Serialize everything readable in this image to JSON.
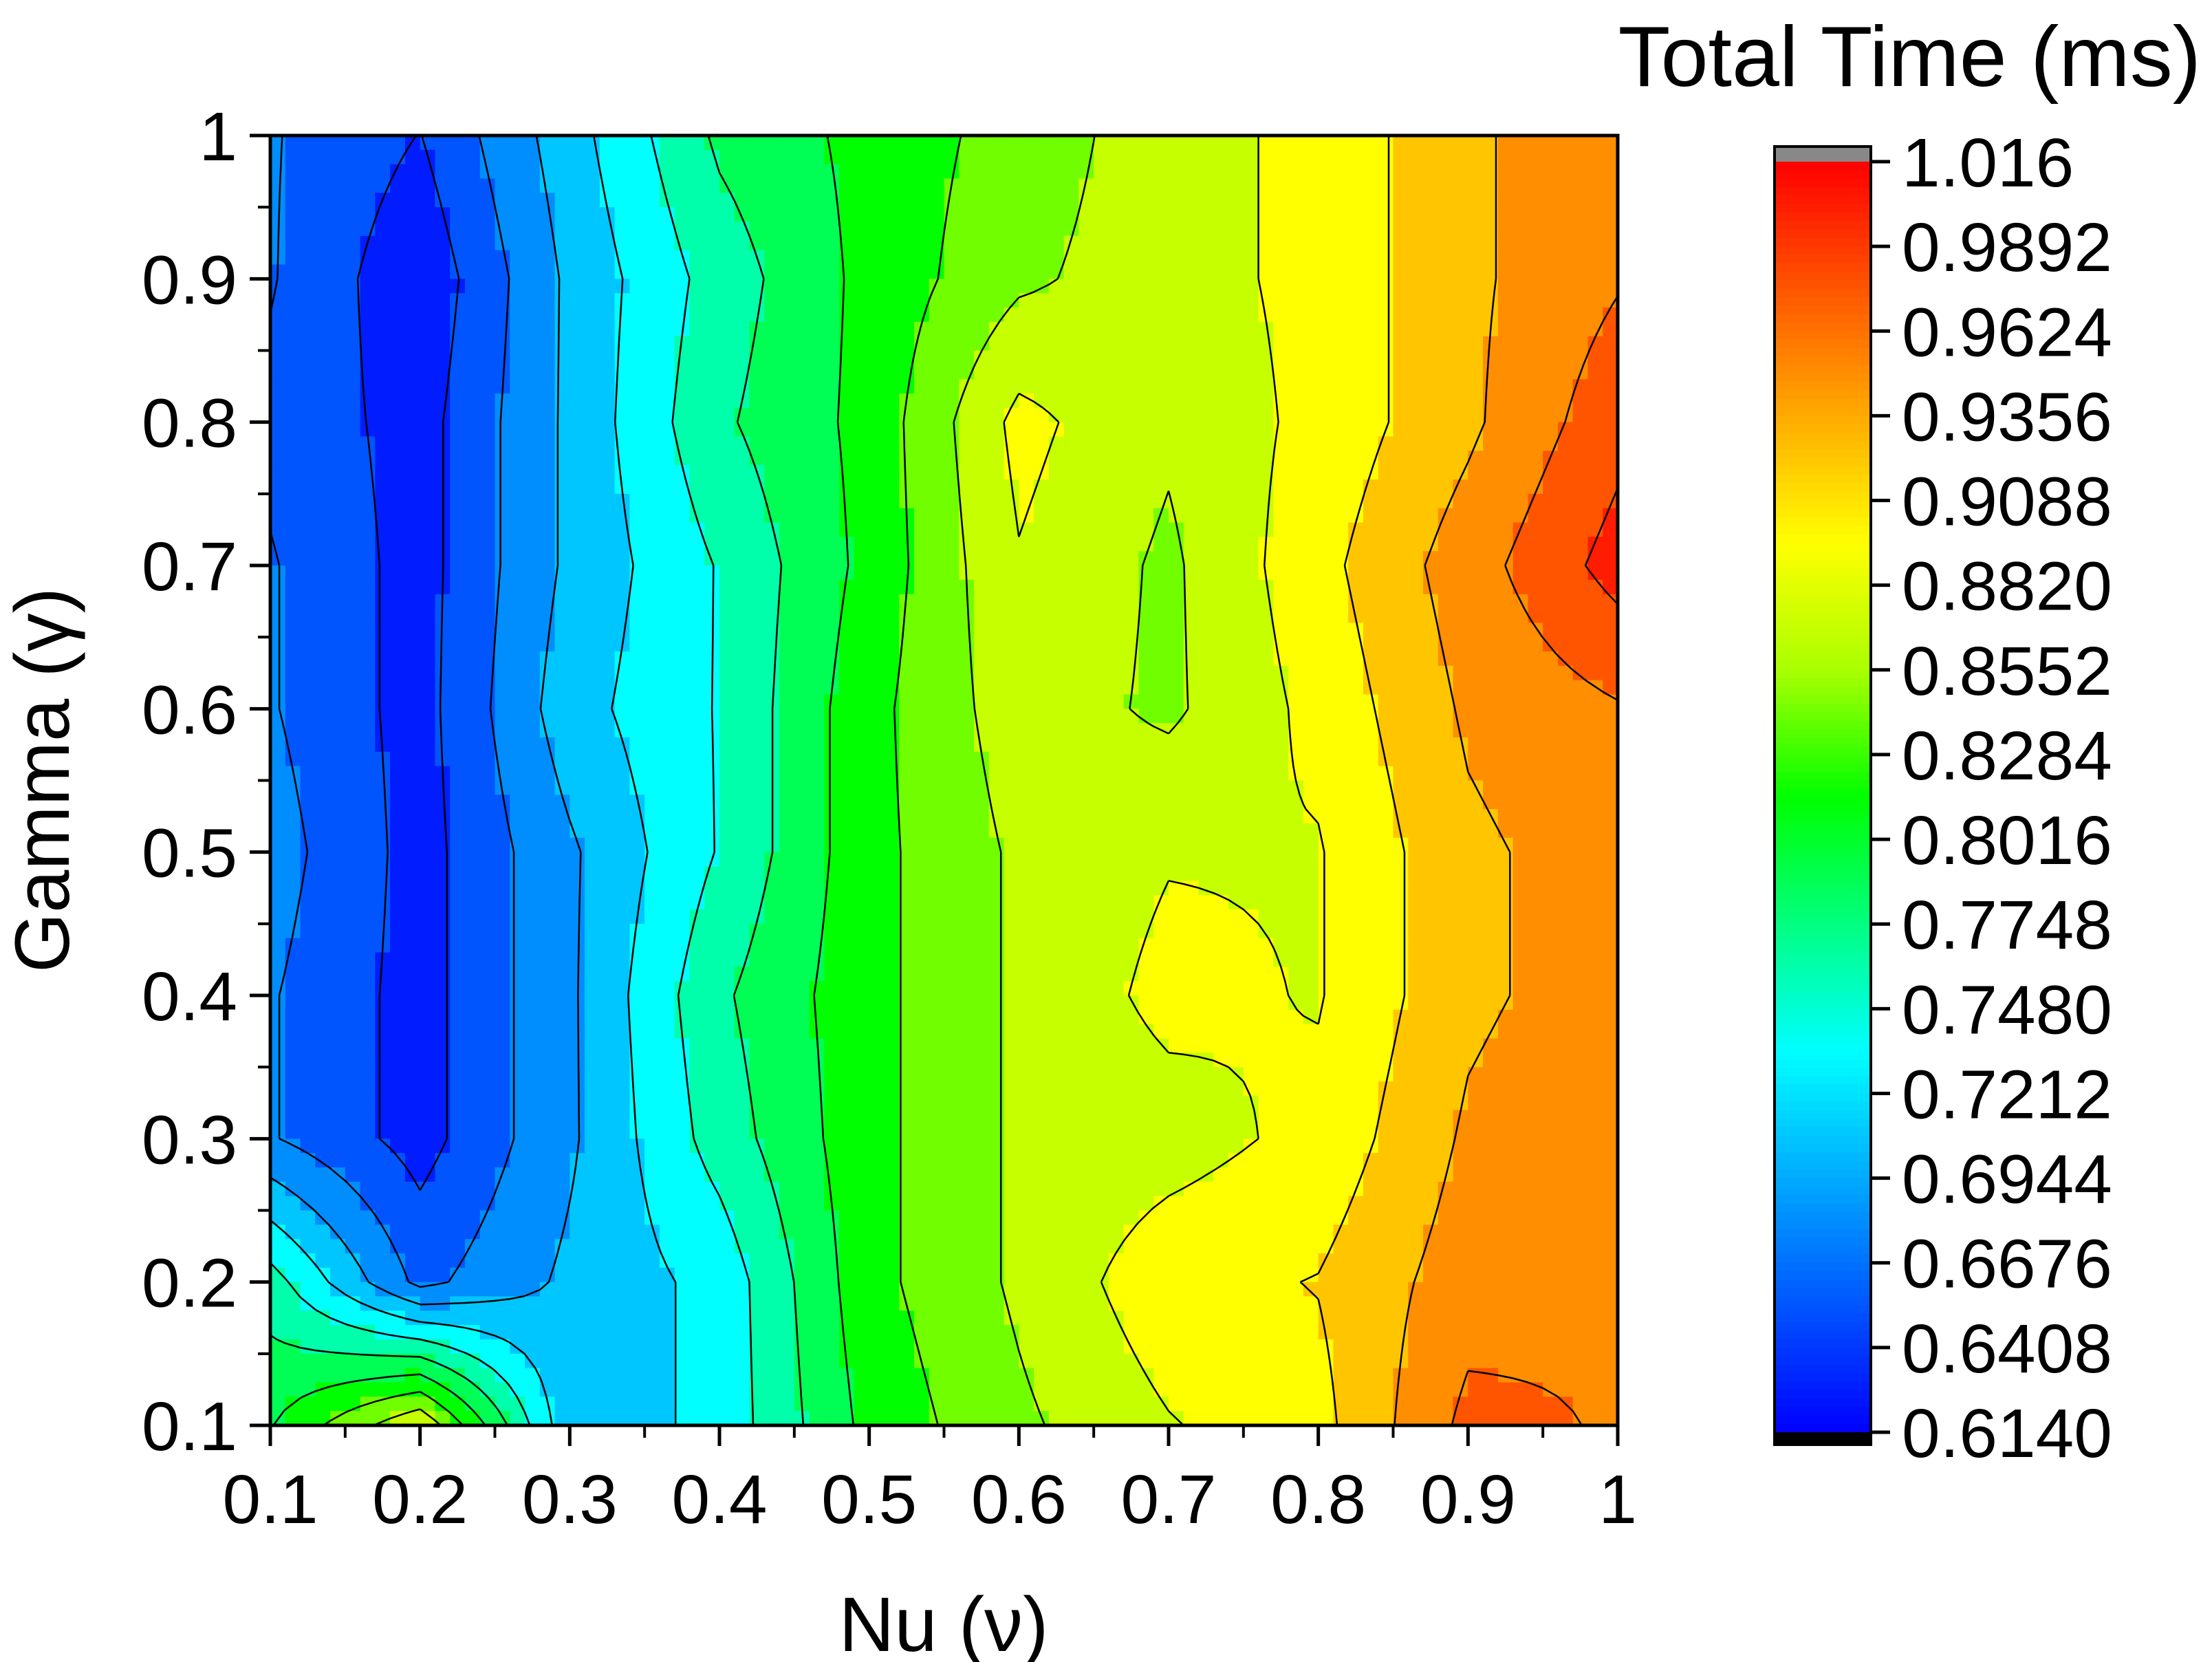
{
  "chart_data": {
    "type": "heatmap",
    "subtype": "filled-contour",
    "title": "",
    "xlabel": "Nu (ν)",
    "ylabel": "Gamma (γ)",
    "colorbar_title": "Total Time (ms)",
    "x": [
      0.1,
      0.2,
      0.3,
      0.4,
      0.5,
      0.6,
      0.7,
      0.8,
      0.9,
      1.0
    ],
    "y": [
      0.1,
      0.2,
      0.3,
      0.4,
      0.5,
      0.6,
      0.7,
      0.8,
      0.9,
      1.0
    ],
    "xlim": [
      0.1,
      1.0
    ],
    "ylim": [
      0.1,
      1.0
    ],
    "x_tick_labels": [
      "0.1",
      "0.2",
      "0.3",
      "0.4",
      "0.5",
      "0.6",
      "0.7",
      "0.8",
      "0.9",
      "1"
    ],
    "y_tick_labels": [
      "0.1",
      "0.2",
      "0.3",
      "0.4",
      "0.5",
      "0.6",
      "0.7",
      "0.8",
      "0.9",
      "1"
    ],
    "z_rows_note": "rows indexed by gamma (0.1 → 1.0), columns by nu (0.1 → 1.0)",
    "z": [
      [
        0.8,
        0.88,
        0.7,
        0.73,
        0.81,
        0.85,
        0.88,
        0.9,
        0.97,
        0.96
      ],
      [
        0.76,
        0.66,
        0.7,
        0.73,
        0.82,
        0.86,
        0.9,
        0.91,
        0.95,
        0.96
      ],
      [
        0.67,
        0.63,
        0.69,
        0.76,
        0.82,
        0.86,
        0.87,
        0.89,
        0.94,
        0.96
      ],
      [
        0.67,
        0.63,
        0.69,
        0.77,
        0.82,
        0.86,
        0.89,
        0.88,
        0.93,
        0.95
      ],
      [
        0.68,
        0.63,
        0.69,
        0.75,
        0.82,
        0.86,
        0.88,
        0.88,
        0.93,
        0.95
      ],
      [
        0.67,
        0.63,
        0.71,
        0.75,
        0.82,
        0.87,
        0.85,
        0.89,
        0.94,
        0.96
      ],
      [
        0.67,
        0.63,
        0.7,
        0.75,
        0.81,
        0.88,
        0.85,
        0.9,
        0.95,
        1.0
      ],
      [
        0.66,
        0.63,
        0.7,
        0.77,
        0.81,
        0.89,
        0.86,
        0.89,
        0.93,
        0.98
      ],
      [
        0.67,
        0.62,
        0.7,
        0.76,
        0.81,
        0.85,
        0.87,
        0.89,
        0.93,
        0.96
      ],
      [
        0.67,
        0.64,
        0.71,
        0.78,
        0.81,
        0.84,
        0.87,
        0.89,
        0.93,
        0.96
      ]
    ],
    "levels": [
      0.614,
      0.6408,
      0.6676,
      0.6944,
      0.7212,
      0.748,
      0.7748,
      0.8016,
      0.8284,
      0.8552,
      0.882,
      0.9088,
      0.9356,
      0.9624,
      0.9892,
      1.016
    ],
    "colorbar_tick_labels": [
      "1.016",
      "0.9892",
      "0.9624",
      "0.9356",
      "0.9088",
      "0.8820",
      "0.8552",
      "0.8284",
      "0.8016",
      "0.7748",
      "0.7480",
      "0.7212",
      "0.6944",
      "0.6676",
      "0.6408",
      "0.6140"
    ],
    "colorscale": [
      "#0000ff",
      "#0055ff",
      "#00aaff",
      "#00ffff",
      "#00ff80",
      "#00ff00",
      "#aaff00",
      "#ffff00",
      "#ffaa00",
      "#ff5500",
      "#ff0000"
    ],
    "colorbar_overflow_color": "#888888",
    "colorbar_underflow_color": "#000000",
    "contour_line_color": "#000000",
    "grid": false,
    "legend": "colorbar-right"
  }
}
